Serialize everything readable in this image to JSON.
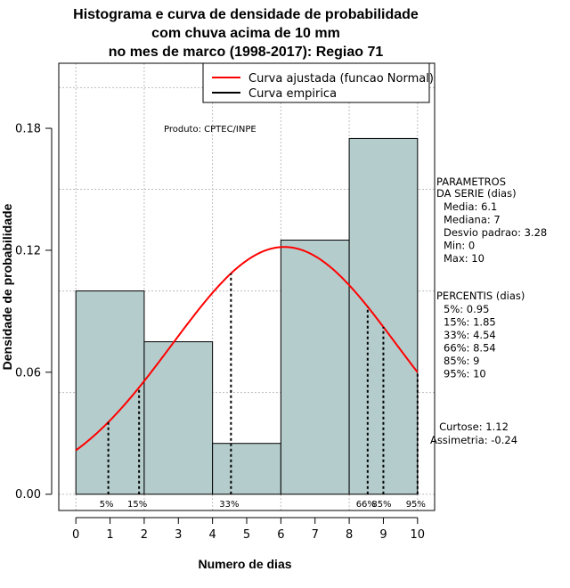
{
  "chart_data": {
    "type": "bar",
    "title_lines": [
      "Histograma e curva de densidade de probabilidade",
      "com chuva acima de 10 mm",
      "no mes de marco (1998-2017): Regiao 71"
    ],
    "xlabel": "Numero de dias",
    "ylabel": "Densidade de probabilidade",
    "xlim": [
      -0.5,
      10.5
    ],
    "ylim": [
      -0.008,
      0.212
    ],
    "x_ticks": [
      "0",
      "1",
      "2",
      "3",
      "4",
      "5",
      "6",
      "7",
      "8",
      "9",
      "10"
    ],
    "y_ticks": [
      "0.00",
      "0.06",
      "0.12",
      "0.18"
    ],
    "y_tick_values": [
      0.0,
      0.06,
      0.12,
      0.18
    ],
    "grid_x": [
      0,
      2,
      4,
      6,
      8,
      10
    ],
    "grid_y": [
      0.0,
      0.05,
      0.1,
      0.15,
      0.2
    ],
    "bins": [
      {
        "x0": 0,
        "x1": 2,
        "density": 0.1
      },
      {
        "x0": 2,
        "x1": 4,
        "density": 0.075
      },
      {
        "x0": 4,
        "x1": 6,
        "density": 0.025
      },
      {
        "x0": 6,
        "x1": 8,
        "density": 0.125
      },
      {
        "x0": 8,
        "x1": 10,
        "density": 0.175
      }
    ],
    "normal_curve": {
      "mean": 6.1,
      "sd": 3.28,
      "x_from": 0,
      "x_to": 10
    },
    "bar_color": "#b5cccc",
    "curve_color": "#ff0000",
    "percentile_lines": [
      {
        "label": "5%",
        "x": 0.95
      },
      {
        "label": "15%",
        "x": 1.85
      },
      {
        "label": "33%",
        "x": 4.54
      },
      {
        "label": "66%",
        "x": 8.54
      },
      {
        "label": "85%",
        "x": 9
      },
      {
        "label": "95%",
        "x": 10
      }
    ],
    "legend": {
      "placement": "top-right",
      "entries": [
        {
          "label": "Curva ajustada (funcao Normal)",
          "color": "#ff0000"
        },
        {
          "label": "Curva empirica",
          "color": "#000000"
        }
      ]
    },
    "annotation": "Produto: CPTEC/INPE",
    "parametros": {
      "header": [
        "PARAMETROS",
        "DA SERIE (dias)"
      ],
      "lines": [
        "Media: 6.1",
        "Mediana: 7",
        "Desvio padrao: 3.28",
        "Min: 0",
        "Max: 10"
      ]
    },
    "percentis": {
      "header": "PERCENTIS (dias)",
      "lines": [
        "5%: 0.95",
        "15%: 1.85",
        "33%: 4.54",
        "66%: 8.54",
        "85%: 9",
        "95%: 10"
      ]
    },
    "moments": [
      "Curtose: 1.12",
      "Assimetria: -0.24"
    ]
  }
}
